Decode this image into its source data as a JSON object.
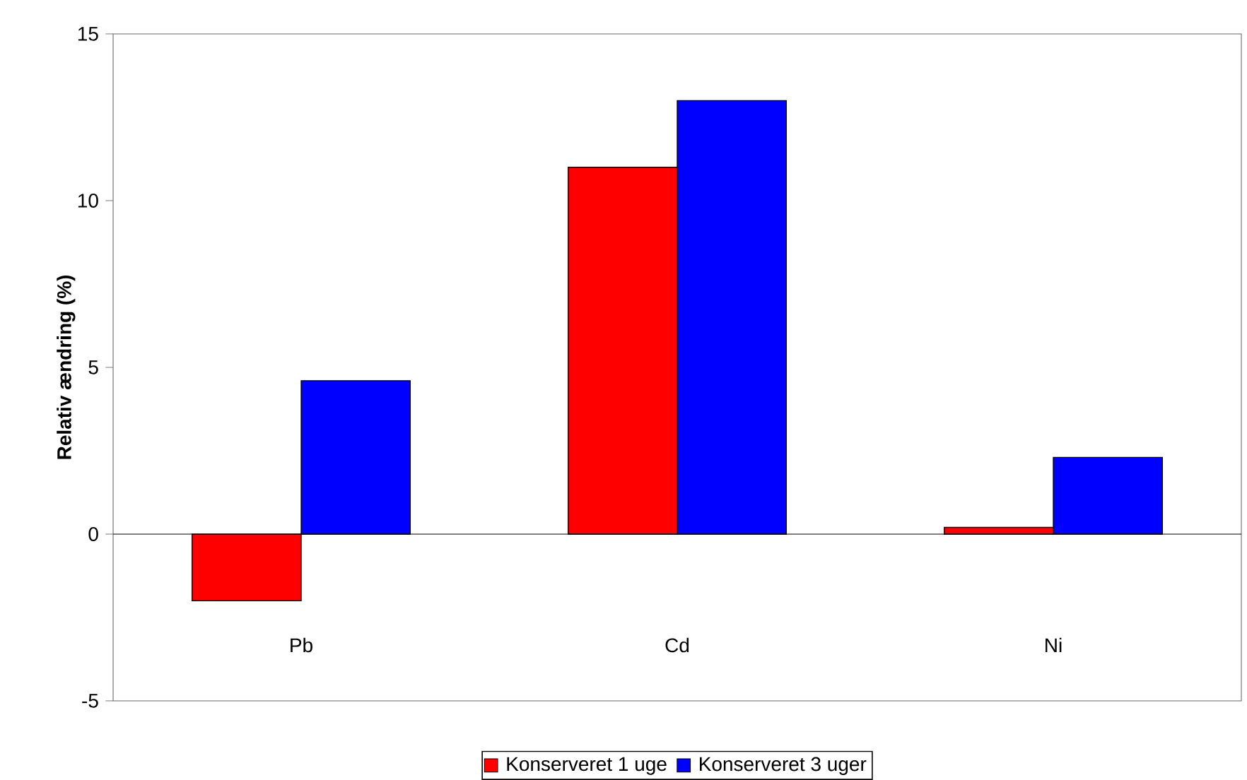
{
  "chart_data": {
    "type": "bar",
    "ylabel": "Relativ ændring (%)",
    "categories": [
      "Pb",
      "Cd",
      "Ni"
    ],
    "series": [
      {
        "name": "Konserveret 1 uge",
        "color": "#ff0000",
        "values": [
          -2,
          11,
          0.2
        ]
      },
      {
        "name": "Konserveret 3 uger",
        "color": "#0000ff",
        "values": [
          4.6,
          13,
          2.3
        ]
      }
    ],
    "ylim": [
      -5,
      15
    ],
    "yticks": [
      -5,
      0,
      5,
      10,
      15
    ],
    "ref_lines": [
      {
        "axis": "y",
        "value": 0,
        "color": "#000000"
      }
    ],
    "grid": false,
    "legend": "bottom"
  }
}
